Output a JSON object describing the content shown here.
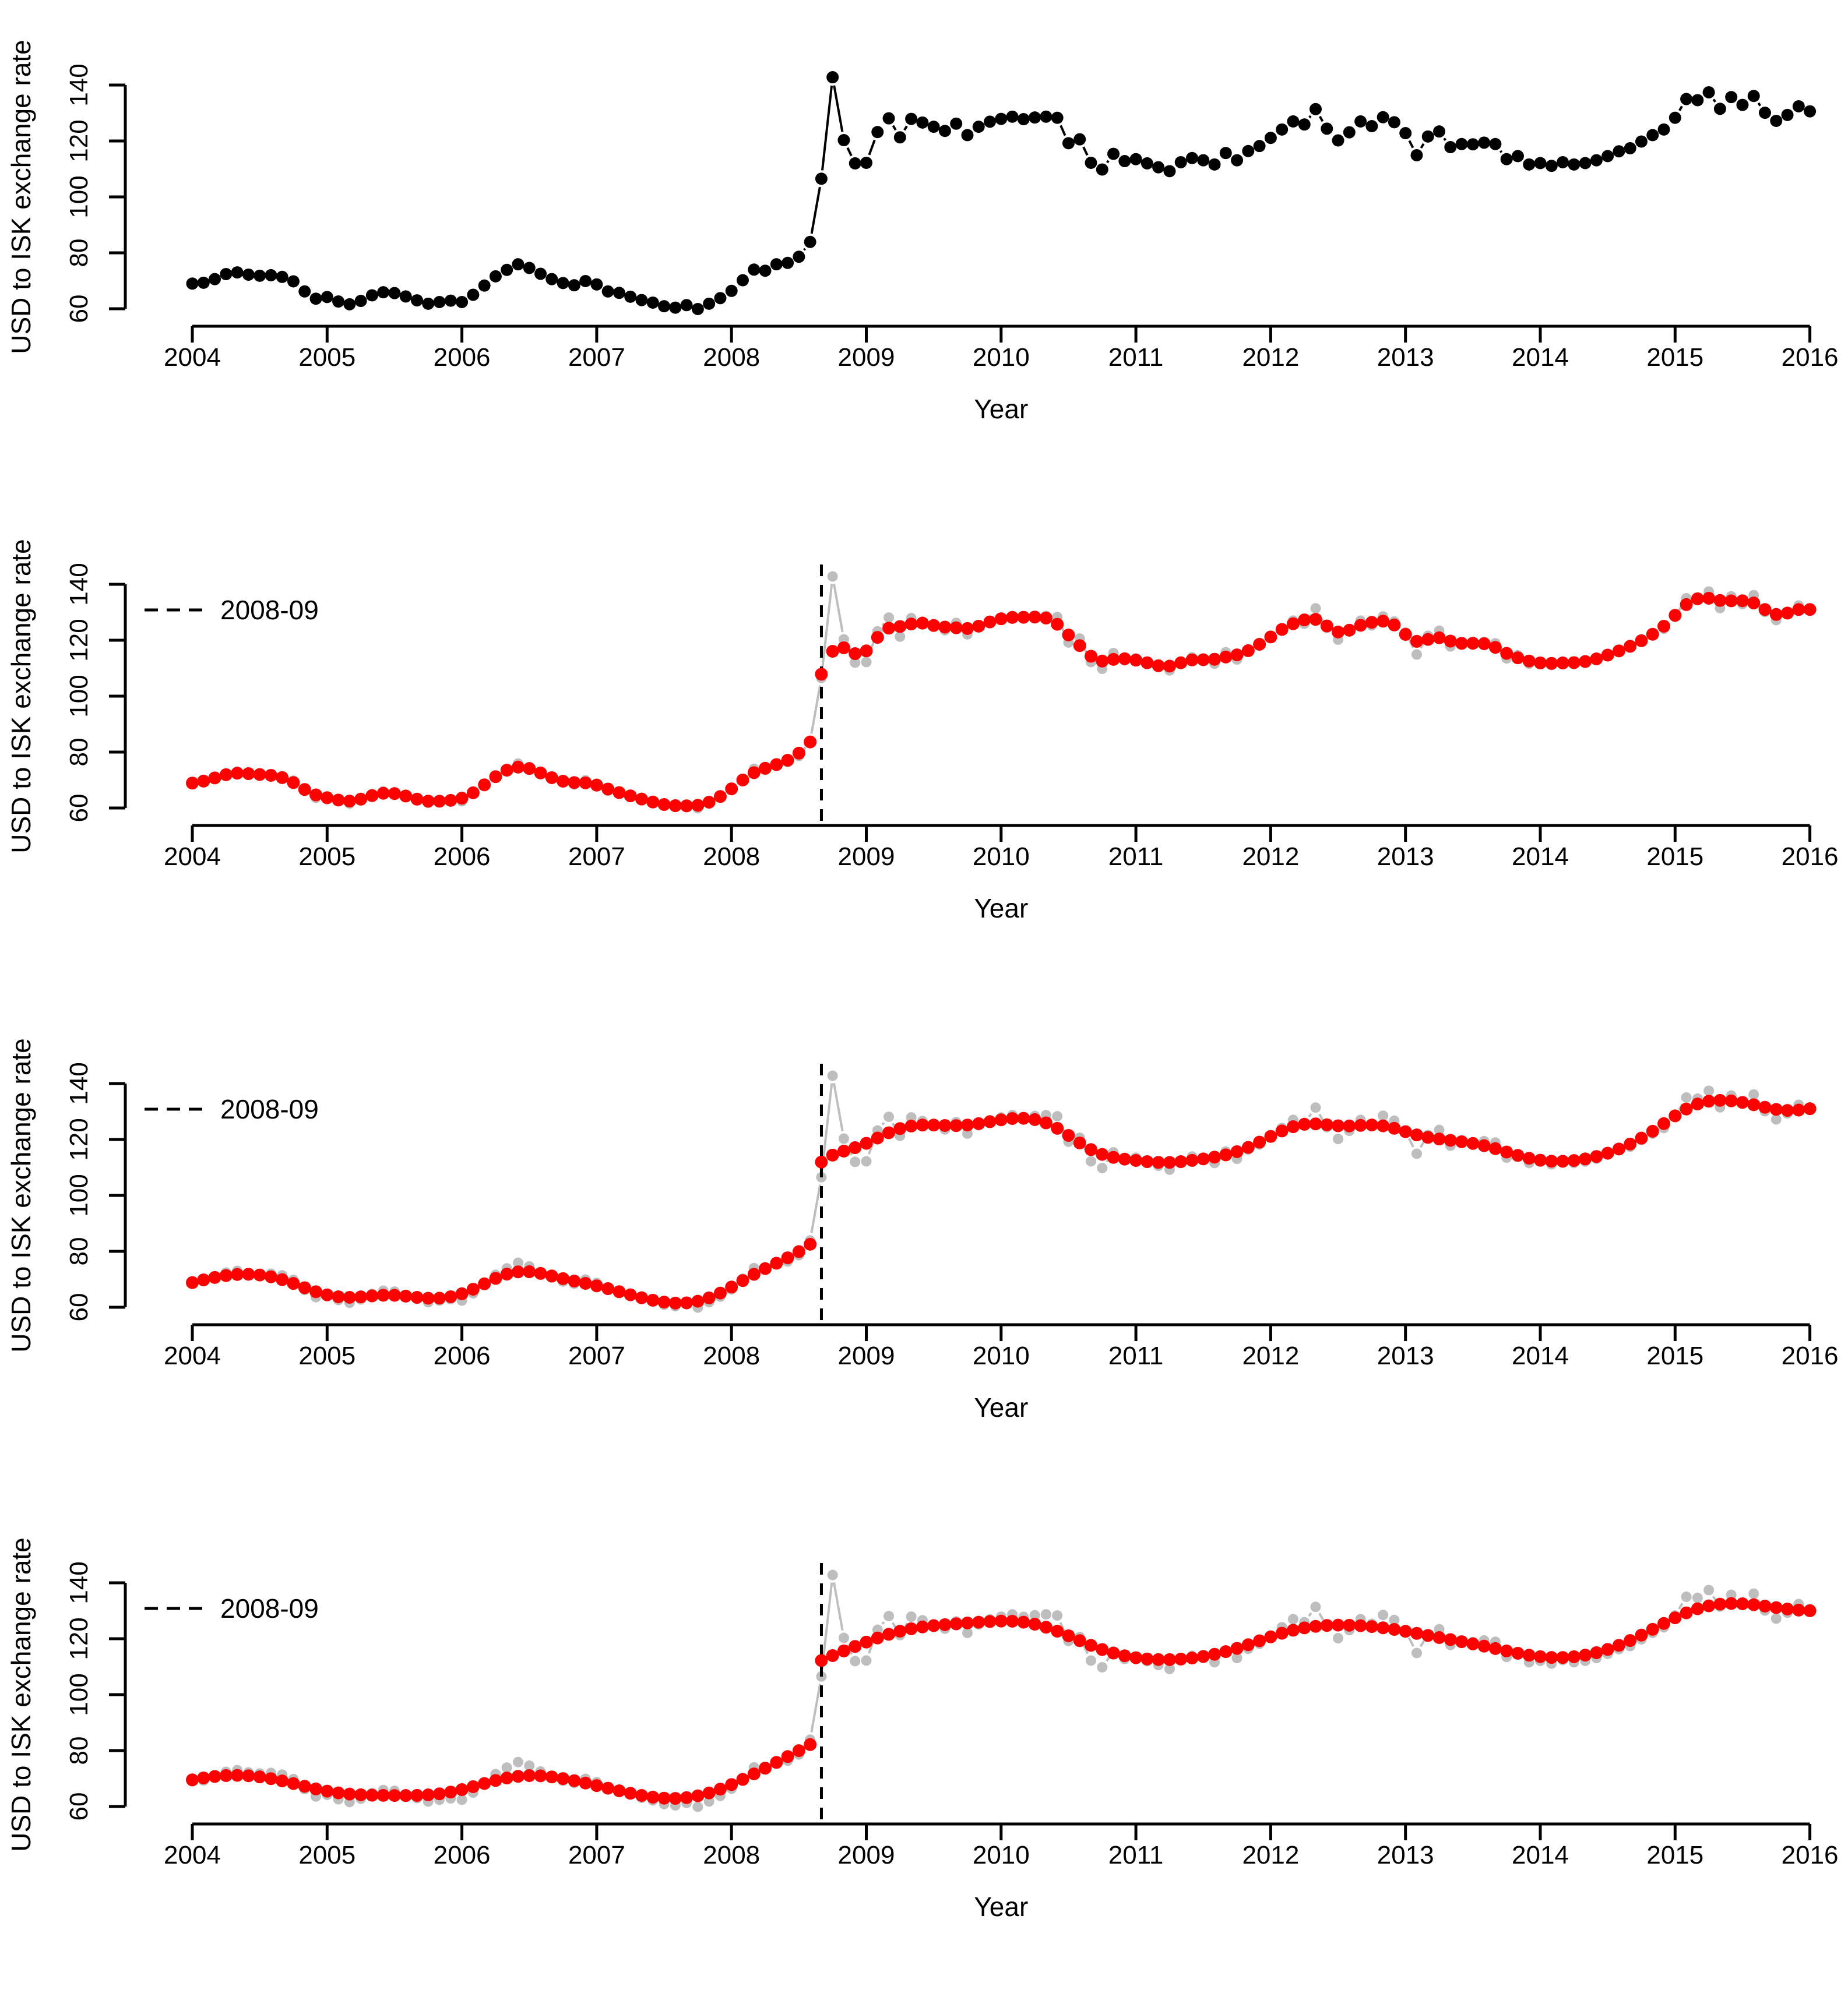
{
  "chart_data": {
    "type": "scatter",
    "title": "",
    "xlabel": "Year",
    "ylabel": "USD to ISK exchange rate",
    "legend_label": "2008-09",
    "x_ticks": [
      2004,
      2005,
      2006,
      2007,
      2008,
      2009,
      2010,
      2011,
      2012,
      2013,
      2014,
      2015,
      2016
    ],
    "y_ticks": [
      60,
      80,
      100,
      120,
      140
    ],
    "xlim": [
      2003.6,
      2016.4
    ],
    "ylim": [
      56,
      146.5
    ],
    "grid": "off",
    "legend_position": "top-left",
    "series": {
      "name": "USD to ISK exchange rate, monthly",
      "start_year": 2004,
      "start_month": 1,
      "frequency": "monthly",
      "values": [
        69.0,
        69.3,
        70.6,
        72.4,
        73.0,
        72.2,
        71.8,
        72.0,
        71.4,
        69.8,
        66.2,
        63.6,
        64.2,
        62.6,
        61.6,
        62.8,
        64.8,
        65.9,
        65.6,
        64.4,
        63.0,
        61.8,
        62.4,
        62.9,
        62.4,
        65.0,
        68.3,
        71.6,
        73.9,
        75.9,
        74.6,
        72.5,
        70.6,
        69.2,
        68.4,
        69.9,
        68.7,
        66.2,
        65.7,
        64.3,
        63.1,
        62.2,
        60.9,
        60.4,
        61.3,
        59.9,
        61.8,
        63.8,
        66.4,
        70.2,
        74.0,
        73.6,
        75.9,
        76.4,
        78.6,
        83.9,
        106.5,
        142.8,
        120.3,
        112.0,
        112.2,
        123.2,
        128.1,
        121.3,
        127.9,
        126.6,
        125.1,
        123.6,
        126.2,
        122.1,
        125.1,
        126.9,
        127.9,
        128.7,
        127.8,
        128.4,
        128.7,
        128.3,
        119.2,
        120.6,
        112.2,
        109.8,
        115.4,
        112.8,
        113.5,
        112.0,
        110.6,
        109.2,
        112.4,
        113.9,
        113.1,
        111.6,
        115.7,
        113.1,
        116.4,
        118.2,
        121.1,
        124.1,
        127.0,
        125.9,
        131.4,
        124.4,
        120.2,
        123.1,
        127.0,
        125.3,
        128.5,
        126.7,
        122.8,
        114.9,
        121.6,
        123.4,
        117.8,
        118.9,
        118.8,
        119.4,
        118.9,
        113.5,
        114.6,
        111.6,
        112.1,
        111.1,
        112.4,
        111.6,
        112.1,
        113.1,
        114.6,
        116.3,
        117.4,
        119.8,
        122.1,
        124.1,
        128.3,
        135.0,
        134.6,
        137.4,
        131.5,
        135.7,
        132.9,
        136.1,
        130.1,
        127.2,
        129.3,
        132.4,
        130.6
      ]
    },
    "break_event": {
      "label": "2008-09",
      "x_year": 2008.667,
      "line_style": "dashed"
    },
    "panels": [
      {
        "id": "raw-data",
        "point_style": "raw-black",
        "smoother_sigma_months": null,
        "show_break_line": false,
        "show_legend": false
      },
      {
        "id": "light-smoothing",
        "point_style": "gray",
        "smoother_sigma_months": 1.0,
        "show_break_line": true,
        "show_legend": true
      },
      {
        "id": "medium-smoothing",
        "point_style": "gray",
        "smoother_sigma_months": 2.1,
        "show_break_line": true,
        "show_legend": true
      },
      {
        "id": "heavy-smoothing",
        "point_style": "gray",
        "smoother_sigma_months": 3.4,
        "show_break_line": true,
        "show_legend": true
      }
    ],
    "smoother": {
      "kind": "local-linear-gaussian",
      "split_at_break": true,
      "break_month_index": 56,
      "outlier_cap_for_smoothing": {
        "month_index": 57,
        "capped_value": 121
      }
    },
    "colors": {
      "raw_points": "#000000",
      "observed_points": "#bebebe",
      "smoothed_points": "#ff0000",
      "axis": "#000000",
      "break_line": "#000000",
      "background": "#ffffff"
    }
  }
}
